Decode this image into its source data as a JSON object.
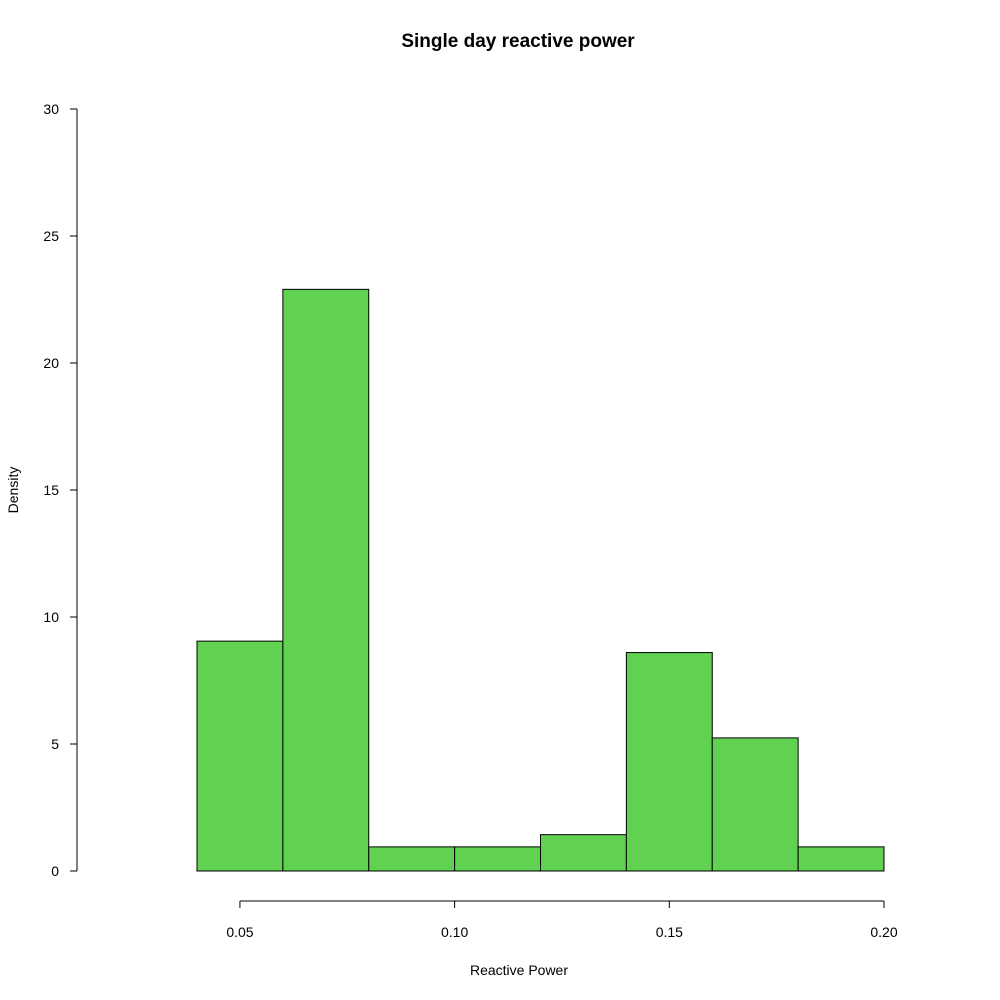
{
  "chart_data": {
    "type": "bar",
    "title": "Single day reactive power",
    "xlabel": "Reactive Power",
    "ylabel": "Density",
    "bins": [
      {
        "x0": 0.04,
        "x1": 0.06,
        "value": 9.05
      },
      {
        "x0": 0.06,
        "x1": 0.08,
        "value": 22.9
      },
      {
        "x0": 0.08,
        "x1": 0.1,
        "value": 0.95
      },
      {
        "x0": 0.1,
        "x1": 0.12,
        "value": 0.95
      },
      {
        "x0": 0.12,
        "x1": 0.14,
        "value": 1.43
      },
      {
        "x0": 0.14,
        "x1": 0.16,
        "value": 8.6
      },
      {
        "x0": 0.16,
        "x1": 0.18,
        "value": 5.24
      },
      {
        "x0": 0.18,
        "x1": 0.2,
        "value": 0.95
      }
    ],
    "xlim": [
      0.04,
      0.2
    ],
    "ylim": [
      0,
      30
    ],
    "xticks": [
      0.05,
      0.1,
      0.15,
      0.2
    ],
    "xtick_labels": [
      "0.05",
      "0.10",
      "0.15",
      "0.20"
    ],
    "yticks": [
      0,
      5,
      10,
      15,
      20,
      25,
      30
    ],
    "ytick_labels": [
      "0",
      "5",
      "10",
      "15",
      "20",
      "25",
      "30"
    ],
    "bar_color": "#61d151",
    "grid": false
  }
}
